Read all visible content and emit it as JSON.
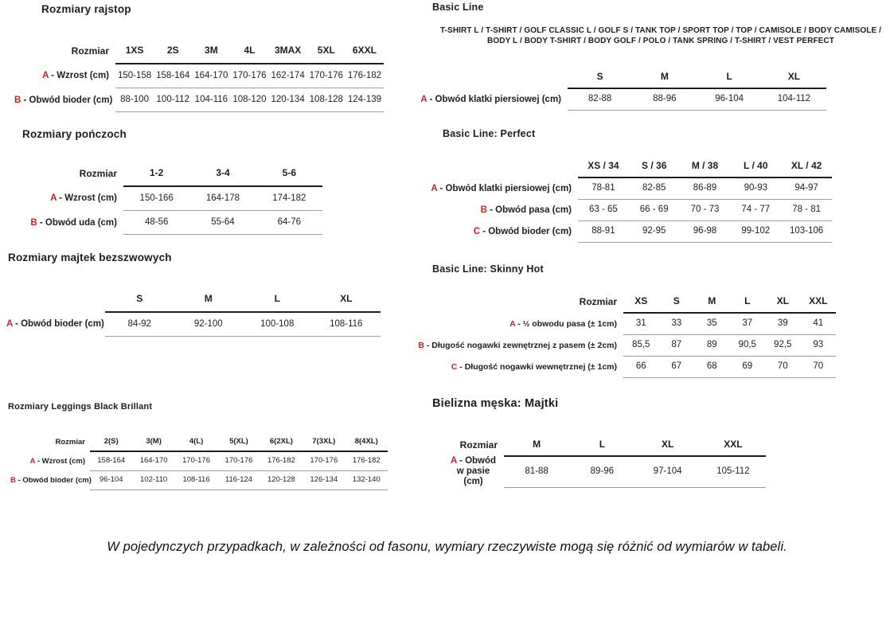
{
  "colors": {
    "accent_red": "#cc2229",
    "rule_dark": "#1c1c1c",
    "rule_light": "#9c9c9c"
  },
  "footer": {
    "note": "W pojedynczych przypadkach, w zależności od fasonu, wymiary rzeczywiste mogą się różnić od wymiarów w tabeli."
  },
  "tables": {
    "rajstop": {
      "title": "Rozmiary rajstop",
      "corner_label": "Rozmiar",
      "columns": [
        "1XS",
        "2S",
        "3M",
        "4L",
        "3MAX",
        "5XL",
        "6XXL"
      ],
      "rows": [
        {
          "letter": "A",
          "label": " - Wzrost (cm)",
          "values": [
            "150-158",
            "158-164",
            "164-170",
            "170-176",
            "162-174",
            "170-176",
            "176-182"
          ]
        },
        {
          "letter": "B",
          "label": " - Obwód bioder (cm)",
          "values": [
            "88-100",
            "100-112",
            "104-116",
            "108-120",
            "120-134",
            "108-128",
            "124-139"
          ]
        }
      ]
    },
    "ponczochy": {
      "title": "Rozmiary pończoch",
      "corner_label": "Rozmiar",
      "columns": [
        "1-2",
        "3-4",
        "5-6"
      ],
      "rows": [
        {
          "letter": "A",
          "label": " - Wzrost (cm)",
          "values": [
            "150-166",
            "164-178",
            "174-182"
          ]
        },
        {
          "letter": "B",
          "label": " - Obwód uda (cm)",
          "values": [
            "48-56",
            "55-64",
            "64-76"
          ]
        }
      ]
    },
    "majtki_bezszwowe": {
      "title": "Rozmiary majtek bezszwowych",
      "corner_label": "",
      "columns": [
        "S",
        "M",
        "L",
        "XL"
      ],
      "rows": [
        {
          "letter": "A",
          "label": " - Obwód bioder (cm)",
          "values": [
            "84-92",
            "92-100",
            "100-108",
            "108-116"
          ]
        }
      ]
    },
    "leggings": {
      "title": "Rozmiary Leggings Black Brillant",
      "corner_label": "Rozmiar",
      "columns": [
        "2(S)",
        "3(M)",
        "4(L)",
        "5(XL)",
        "6(2XL)",
        "7(3XL)",
        "8(4XL)"
      ],
      "rows": [
        {
          "letter": "A",
          "label": " - Wzrost (cm)",
          "values": [
            "158-164",
            "164-170",
            "170-176",
            "170-176",
            "176-182",
            "170-176",
            "176-182"
          ]
        },
        {
          "letter": "B",
          "label": " - Obwód bioder (cm)",
          "values": [
            "96-104",
            "102-110",
            "108-116",
            "116-124",
            "120-128",
            "126-134",
            "132-140"
          ]
        }
      ]
    },
    "basic_line": {
      "title": "Basic Line",
      "subtitle": "T-SHIRT L / T-SHIRT / GOLF CLASSIC L / GOLF S / TANK TOP / SPORT TOP / TOP / CAMISOLE / BODY CAMISOLE / BODY L / BODY T-SHIRT / BODY GOLF / POLO / TANK SPRING / T-SHIRT / VEST PERFECT",
      "corner_label": "",
      "columns": [
        "S",
        "M",
        "L",
        "XL"
      ],
      "rows": [
        {
          "letter": "A",
          "label": " - Obwód klatki piersiowej (cm)",
          "values": [
            "82-88",
            "88-96",
            "96-104",
            "104-112"
          ]
        }
      ]
    },
    "perfect": {
      "title": "Basic Line: Perfect",
      "corner_label": "",
      "columns": [
        "XS / 34",
        "S / 36",
        "M / 38",
        "L / 40",
        "XL / 42"
      ],
      "rows": [
        {
          "letter": "A",
          "label": " - Obwód klatki piersiowej (cm)",
          "values": [
            "78-81",
            "82-85",
            "86-89",
            "90-93",
            "94-97"
          ]
        },
        {
          "letter": "B",
          "label": " - Obwód pasa (cm)",
          "values": [
            "63 - 65",
            "66 - 69",
            "70 - 73",
            "74 - 77",
            "78 - 81"
          ]
        },
        {
          "letter": "C",
          "label": " - Obwód bioder (cm)",
          "values": [
            "88-91",
            "92-95",
            "96-98",
            "99-102",
            "103-106"
          ]
        }
      ]
    },
    "skinny_hot": {
      "title": "Basic Line: Skinny Hot",
      "corner_label": "Rozmiar",
      "columns": [
        "XS",
        "S",
        "M",
        "L",
        "XL",
        "XXL"
      ],
      "rows": [
        {
          "letter": "A",
          "label": " - ½ obwodu pasa (± 1cm)",
          "values": [
            "31",
            "33",
            "35",
            "37",
            "39",
            "41"
          ]
        },
        {
          "letter": "B",
          "label": " - Długość nogawki zewnętrznej z pasem (± 2cm)",
          "values": [
            "85,5",
            "87",
            "89",
            "90,5",
            "92,5",
            "93"
          ]
        },
        {
          "letter": "C",
          "label": " - Długość nogawki wewnętrznej (± 1cm)",
          "values": [
            "66",
            "67",
            "68",
            "69",
            "70",
            "70"
          ]
        }
      ]
    },
    "majtki_meskie": {
      "title": "Bielizna męska: Majtki",
      "corner_label": "Rozmiar",
      "columns": [
        "M",
        "L",
        "XL",
        "XXL"
      ],
      "rows": [
        {
          "letter": "A",
          "label": " - Obwód w pasie (cm)",
          "values": [
            "81-88",
            "89-96",
            "97-104",
            "105-112"
          ]
        }
      ]
    }
  }
}
